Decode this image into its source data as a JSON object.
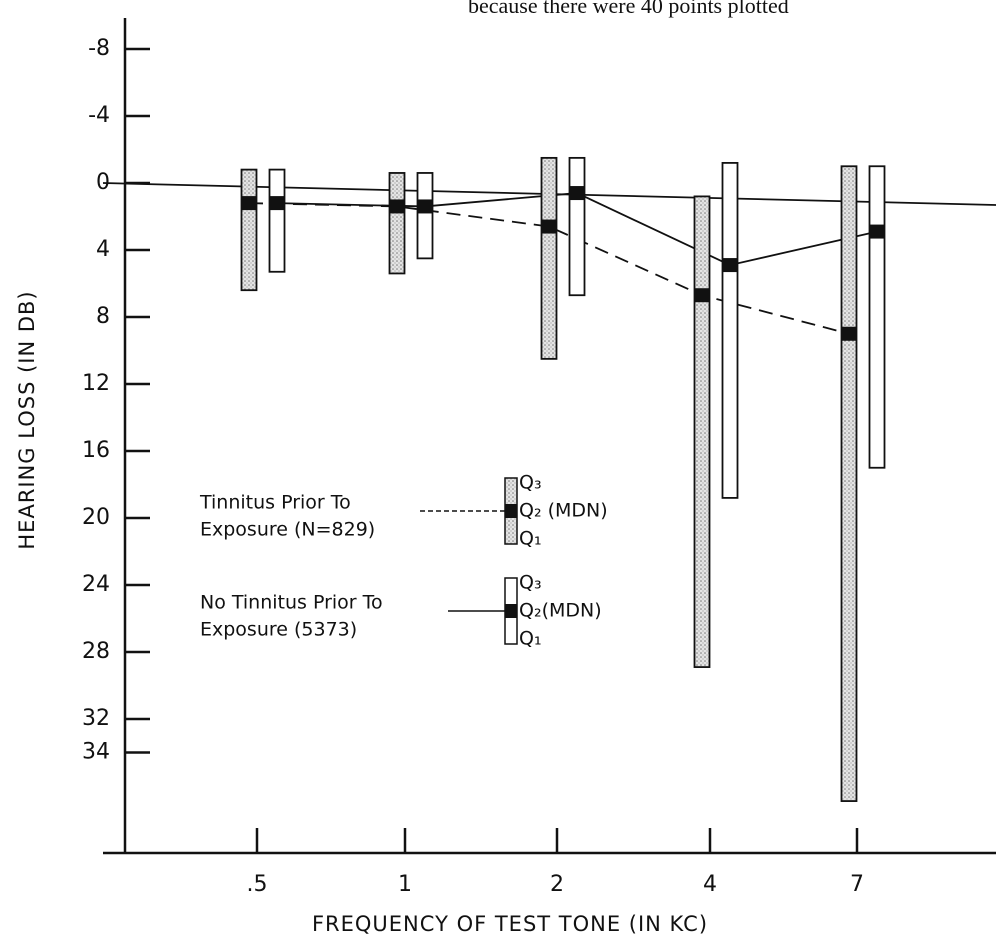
{
  "page_fragment": "because there were 40 points plotted",
  "chart_data": {
    "type": "boxbar",
    "x_label": "FREQUENCY OF TEST TONE (IN KC)",
    "y_label": "HEARING LOSS (IN DB)",
    "categories": [
      ".5",
      "1",
      "2",
      "4",
      "7"
    ],
    "ylim": [
      -10,
      40
    ],
    "y_inverted": true,
    "yticks": [
      -8,
      -4,
      0,
      4,
      8,
      12,
      16,
      20,
      24,
      28,
      32,
      34
    ],
    "series": [
      {
        "name": [
          "Tinnitus Prior To",
          "Exposure (N=829)"
        ],
        "fill": "stipple",
        "line": "dashed",
        "key_labels": [
          "Q₃",
          "Q₂ (MDN)",
          "Q₁"
        ],
        "q3": [
          -0.8,
          -0.6,
          -1.5,
          0.8,
          -1
        ],
        "median": [
          1.2,
          1.4,
          2.6,
          6.7,
          9
        ],
        "q1": [
          6.4,
          5.4,
          10.5,
          28.9,
          36.9
        ]
      },
      {
        "name": [
          "No Tinnitus Prior To",
          "Exposure (5373)"
        ],
        "fill": "white",
        "line": "solid",
        "key_labels": [
          "Q₃",
          "Q₂(MDN)",
          "Q₁"
        ],
        "q3": [
          -0.8,
          -0.6,
          -1.5,
          -1.2,
          -1
        ],
        "median": [
          1.2,
          1.4,
          0.6,
          4.9,
          2.9
        ],
        "q1": [
          5.3,
          4.5,
          6.7,
          18.8,
          17
        ]
      }
    ]
  }
}
